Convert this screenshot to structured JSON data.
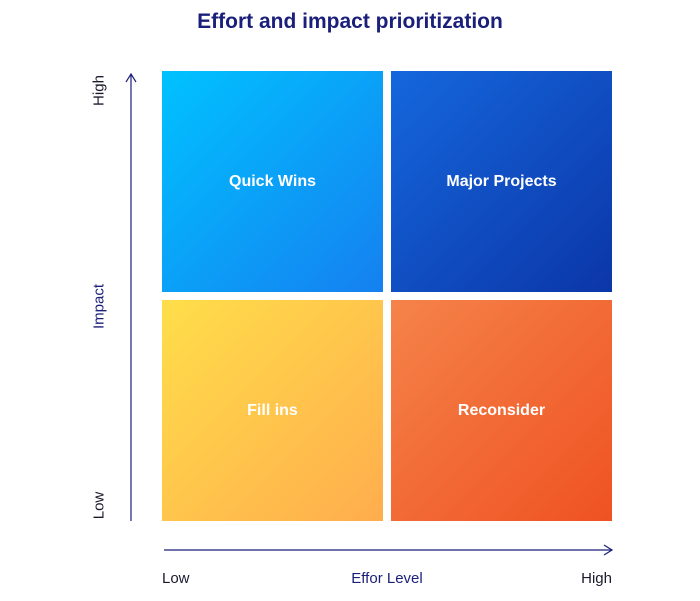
{
  "title": "Effort and impact prioritization",
  "quadrants": {
    "top_left": "Quick Wins",
    "top_right": "Major Projects",
    "bottom_left": "Fill ins",
    "bottom_right": "Reconsider"
  },
  "y_axis": {
    "title": "Impact",
    "high": "High",
    "low": "Low"
  },
  "x_axis": {
    "title": "Effor Level",
    "low": "Low",
    "high": "High"
  },
  "colors": {
    "title": "#1a1f7a",
    "axis": "#1a1f7a",
    "quick_wins": "#00c2ff",
    "major_projects": "#0b36a8",
    "fill_ins": "#ffc84a",
    "reconsider": "#ef5222"
  }
}
